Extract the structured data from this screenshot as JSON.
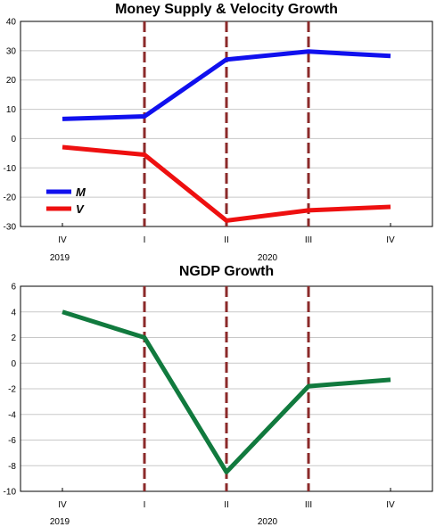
{
  "chart_data": [
    {
      "type": "line",
      "title": "Money Supply & Velocity Growth",
      "categories": [
        "IV",
        "I",
        "II",
        "III",
        "IV"
      ],
      "year_labels": [
        "2019",
        "2020"
      ],
      "ylim": [
        -30,
        40
      ],
      "y_ticks": [
        40,
        30,
        20,
        10,
        0,
        -10,
        -20,
        -30
      ],
      "grid": true,
      "legend_position": "bottom-left",
      "vertical_dashed_lines_at": [
        "I",
        "II",
        "III"
      ],
      "series": [
        {
          "name": "M",
          "color": "#1010ee",
          "values": [
            6.7,
            7.6,
            27.0,
            29.7,
            28.2
          ]
        },
        {
          "name": "V",
          "color": "#ee1010",
          "values": [
            -2.9,
            -5.5,
            -28.0,
            -24.5,
            -23.3
          ]
        }
      ]
    },
    {
      "type": "line",
      "title": "NGDP Growth",
      "categories": [
        "IV",
        "I",
        "II",
        "III",
        "IV"
      ],
      "year_labels": [
        "2019",
        "2020"
      ],
      "ylim": [
        -10,
        6
      ],
      "y_ticks": [
        6,
        4,
        2,
        0,
        -2,
        -4,
        -6,
        -8,
        -10
      ],
      "grid": true,
      "vertical_dashed_lines_at": [
        "I",
        "II",
        "III"
      ],
      "series": [
        {
          "color": "#117a3e",
          "values": [
            4.0,
            2.0,
            -8.5,
            -1.8,
            -1.3
          ]
        }
      ]
    }
  ]
}
